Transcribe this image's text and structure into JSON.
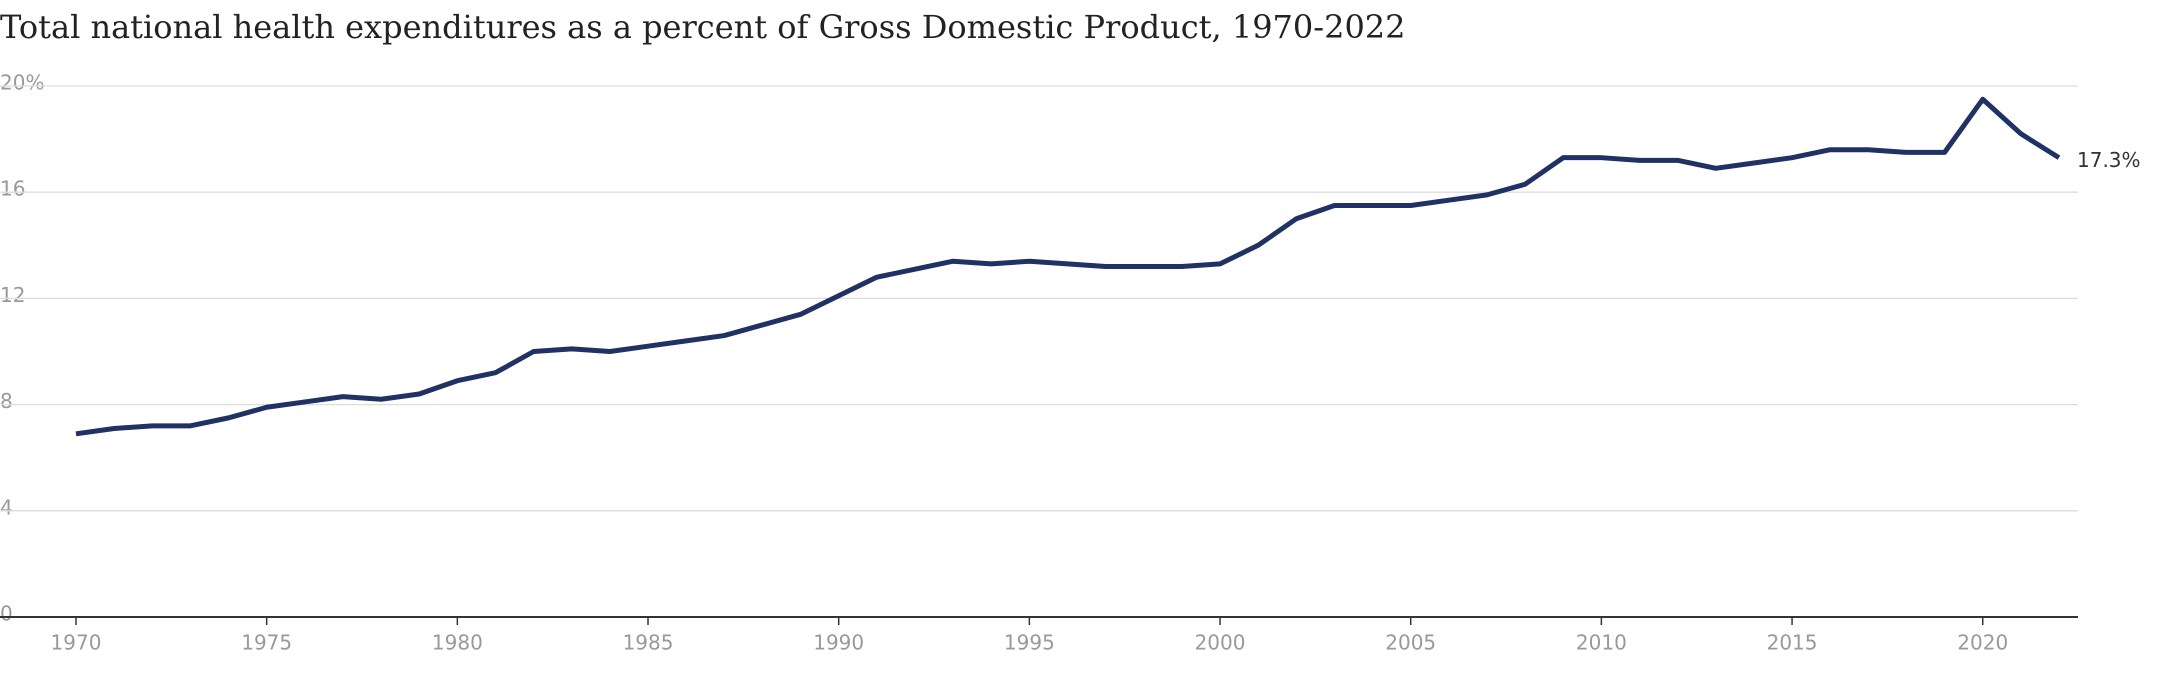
{
  "chart_data": {
    "type": "line",
    "title": "Total national health expenditures as a percent of Gross Domestic Product, 1970-2022",
    "x": [
      1970,
      1971,
      1972,
      1973,
      1974,
      1975,
      1976,
      1977,
      1978,
      1979,
      1980,
      1981,
      1982,
      1983,
      1984,
      1985,
      1986,
      1987,
      1988,
      1989,
      1990,
      1991,
      1992,
      1993,
      1994,
      1995,
      1996,
      1997,
      1998,
      1999,
      2000,
      2001,
      2002,
      2003,
      2004,
      2005,
      2006,
      2007,
      2008,
      2009,
      2010,
      2011,
      2012,
      2013,
      2014,
      2015,
      2016,
      2017,
      2018,
      2019,
      2020,
      2021,
      2022
    ],
    "series": [
      {
        "color": "#1f3263",
        "values": [
          6.9,
          7.1,
          7.2,
          7.2,
          7.5,
          7.9,
          8.1,
          8.3,
          8.2,
          8.4,
          8.9,
          9.2,
          10.0,
          10.1,
          10.0,
          10.2,
          10.4,
          10.6,
          11.0,
          11.4,
          12.1,
          12.8,
          13.1,
          13.4,
          13.3,
          13.4,
          13.3,
          13.2,
          13.2,
          13.2,
          13.3,
          14.0,
          15.0,
          15.5,
          15.5,
          15.5,
          15.7,
          15.9,
          16.3,
          17.3,
          17.3,
          17.2,
          17.2,
          16.9,
          17.1,
          17.3,
          17.6,
          17.6,
          17.5,
          17.5,
          19.5,
          18.2,
          17.3
        ],
        "value_labels": [
          null,
          null,
          null,
          null,
          null,
          null,
          null,
          null,
          null,
          null,
          null,
          null,
          null,
          null,
          null,
          null,
          null,
          null,
          null,
          null,
          null,
          null,
          null,
          null,
          null,
          null,
          null,
          null,
          null,
          null,
          null,
          null,
          null,
          null,
          null,
          null,
          null,
          null,
          null,
          null,
          null,
          null,
          null,
          null,
          null,
          null,
          null,
          null,
          null,
          null,
          null,
          null,
          "17.3%"
        ]
      }
    ],
    "xlim": [
      1970,
      2022
    ],
    "xticks": [
      1970,
      1975,
      1980,
      1985,
      1990,
      1995,
      2000,
      2005,
      2010,
      2015,
      2020
    ],
    "ylim": [
      0,
      20
    ],
    "yticks": [
      0,
      4,
      8,
      12,
      16,
      {
        "value": 20,
        "label": "20%"
      }
    ],
    "grid": true
  }
}
